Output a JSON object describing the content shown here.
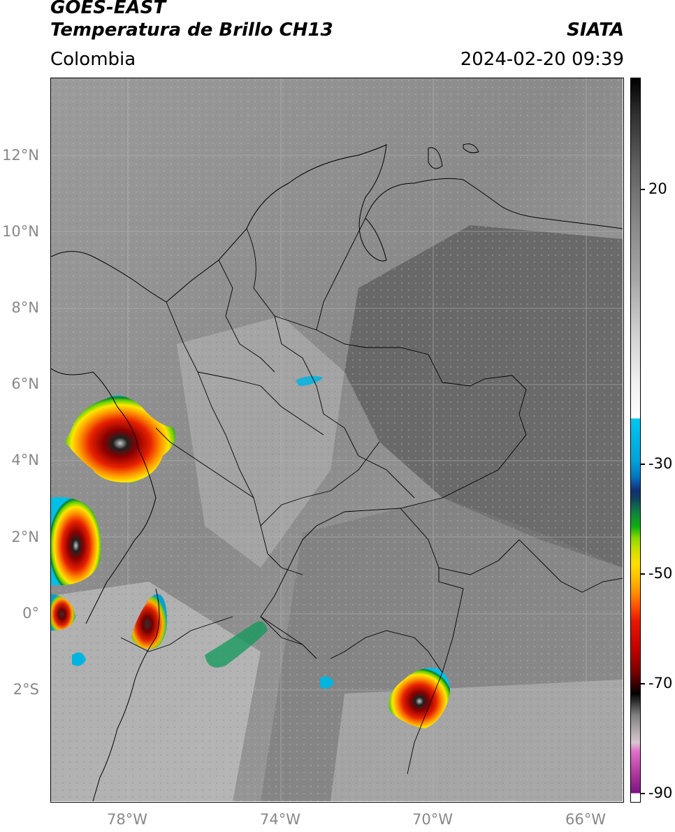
{
  "header": {
    "satellite": "GOES-EAST",
    "product": "Temperatura de Brillo CH13",
    "region": "Colombia",
    "source": "SIATA",
    "datetime": "2024-02-20 09:39"
  },
  "map": {
    "latitude_labels": [
      {
        "label": "12°N",
        "value": 12
      },
      {
        "label": "10°N",
        "value": 10
      },
      {
        "label": "8°N",
        "value": 8
      },
      {
        "label": "6°N",
        "value": 6
      },
      {
        "label": "4°N",
        "value": 4
      },
      {
        "label": "2°N",
        "value": 2
      },
      {
        "label": "0°",
        "value": 0
      },
      {
        "label": "2°S",
        "value": -2
      }
    ],
    "longitude_labels": [
      {
        "label": "78°W",
        "value": -78
      },
      {
        "label": "74°W",
        "value": -74
      },
      {
        "label": "70°W",
        "value": -70
      },
      {
        "label": "66°W",
        "value": -66
      }
    ],
    "extent": {
      "lon_min": -80.0,
      "lon_max": -65.0,
      "lat_min": -4.9,
      "lat_max": 14.1
    }
  },
  "colorbar": {
    "labels": [
      {
        "label": "20",
        "value": 20
      },
      {
        "label": "-30",
        "value": -30
      },
      {
        "label": "-50",
        "value": -50
      },
      {
        "label": "-70",
        "value": -70
      },
      {
        "label": "-90",
        "value": -90
      }
    ],
    "range": [
      -92,
      38
    ],
    "colors": [
      "#ffffff",
      "#7a1380",
      "#e070c8",
      "#d8c8d0",
      "#404040",
      "#000000",
      "#7a0000",
      "#e81800",
      "#ff9000",
      "#ffe000",
      "#88d800",
      "#10b010",
      "#103070",
      "#00c8f0",
      "#ffffff",
      "#888888",
      "#000000"
    ]
  }
}
